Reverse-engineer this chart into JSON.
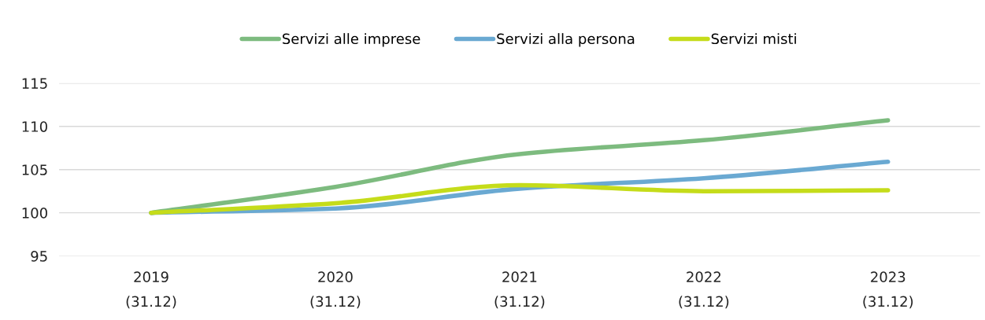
{
  "chart_data": {
    "type": "line",
    "categories": [
      "2019\n(31.12)",
      "2020\n(31.12)",
      "2021\n(31.12)",
      "2022\n(31.12)",
      "2023\n(31.12)"
    ],
    "series": [
      {
        "name": "Servizi alle imprese",
        "color": "#7dbb7f",
        "values": [
          100,
          103.0,
          106.8,
          108.4,
          110.7
        ]
      },
      {
        "name": "Servizi alla persona",
        "color": "#6aa9d2",
        "values": [
          100,
          100.5,
          102.8,
          104.0,
          105.9
        ]
      },
      {
        "name": "Servizi misti",
        "color": "#c5dc1a",
        "values": [
          100,
          101.1,
          103.2,
          102.5,
          102.6
        ]
      }
    ],
    "ylim": [
      95,
      115
    ],
    "yticks": [
      95,
      100,
      105,
      110,
      115
    ],
    "grid": "y",
    "legend": "top",
    "marker": "none",
    "line_style": "solid"
  }
}
